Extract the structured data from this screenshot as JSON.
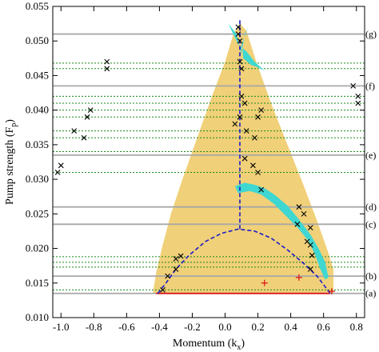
{
  "chart_data": {
    "type": "scatter",
    "xlabel": "Momentum (k",
    "xlabel_sub": "x",
    "xlabel_close": ")",
    "ylabel": "Pump strength (F",
    "ylabel_sub": "p",
    "ylabel_close": ")",
    "xlim": [
      -1.05,
      0.85
    ],
    "ylim": [
      0.01,
      0.055
    ],
    "xticks": [
      {
        "value": -1.0,
        "label": "-1.0"
      },
      {
        "value": -0.8,
        "label": "-0.8"
      },
      {
        "value": -0.6,
        "label": "-0.6"
      },
      {
        "value": -0.4,
        "label": "-0.4"
      },
      {
        "value": -0.2,
        "label": "-0.2"
      },
      {
        "value": 0.0,
        "label": "0.0"
      },
      {
        "value": 0.2,
        "label": "0.2"
      },
      {
        "value": 0.4,
        "label": "0.4"
      },
      {
        "value": 0.6,
        "label": "0.6"
      },
      {
        "value": 0.8,
        "label": "0.8"
      }
    ],
    "yticks": [
      {
        "value": 0.01,
        "label": "0.010"
      },
      {
        "value": 0.015,
        "label": "0.015"
      },
      {
        "value": 0.02,
        "label": "0.020"
      },
      {
        "value": 0.025,
        "label": "0.025"
      },
      {
        "value": 0.03,
        "label": "0.030"
      },
      {
        "value": 0.035,
        "label": "0.035"
      },
      {
        "value": 0.04,
        "label": "0.040"
      },
      {
        "value": 0.045,
        "label": "0.045"
      },
      {
        "value": 0.05,
        "label": "0.050"
      },
      {
        "value": 0.055,
        "label": "0.055"
      }
    ],
    "side_labels": [
      {
        "y": 0.0135,
        "label": "(a)"
      },
      {
        "y": 0.016,
        "label": "(b)"
      },
      {
        "y": 0.0235,
        "label": "(c)"
      },
      {
        "y": 0.026,
        "label": "(d)"
      },
      {
        "y": 0.0335,
        "label": "(e)"
      },
      {
        "y": 0.0435,
        "label": "(f)"
      },
      {
        "y": 0.051,
        "label": "(g)"
      }
    ],
    "gray_lines": [
      0.0135,
      0.016,
      0.0235,
      0.026,
      0.0335,
      0.0435,
      0.051
    ],
    "green_dotted_lines": [
      0.014,
      0.0173,
      0.018,
      0.0188,
      0.031,
      0.034,
      0.036,
      0.037,
      0.039,
      0.04,
      0.041,
      0.042,
      0.046,
      0.0468
    ],
    "yellow_region": {
      "color": "#f0d078",
      "outline": [
        [
          -0.44,
          0.0135
        ],
        [
          -0.42,
          0.0165
        ],
        [
          -0.38,
          0.0205
        ],
        [
          -0.33,
          0.025
        ],
        [
          -0.26,
          0.03
        ],
        [
          -0.17,
          0.036
        ],
        [
          -0.08,
          0.042
        ],
        [
          0.0,
          0.047
        ],
        [
          0.05,
          0.051
        ],
        [
          0.09,
          0.0525
        ],
        [
          0.13,
          0.0515
        ],
        [
          0.19,
          0.047
        ],
        [
          0.28,
          0.041
        ],
        [
          0.38,
          0.035
        ],
        [
          0.48,
          0.029
        ],
        [
          0.56,
          0.024
        ],
        [
          0.62,
          0.02
        ],
        [
          0.66,
          0.017
        ],
        [
          0.66,
          0.0135
        ]
      ]
    },
    "cyan_regions": [
      {
        "color": "#3fd7d1",
        "outline": [
          [
            0.02,
            0.0525
          ],
          [
            0.07,
            0.051
          ],
          [
            0.09,
            0.049
          ],
          [
            0.1,
            0.048
          ],
          [
            0.1,
            0.0495
          ],
          [
            0.14,
            0.052
          ],
          [
            0.12,
            0.051
          ],
          [
            0.105,
            0.049
          ],
          [
            0.11,
            0.0475
          ],
          [
            0.16,
            0.0465
          ],
          [
            0.2,
            0.0462
          ],
          [
            0.24,
            0.0457
          ],
          [
            0.18,
            0.047
          ],
          [
            0.13,
            0.0485
          ],
          [
            0.08,
            0.0495
          ],
          [
            0.05,
            0.051
          ]
        ]
      },
      {
        "color": "#3fd7d1",
        "outline": [
          [
            0.06,
            0.029
          ],
          [
            0.12,
            0.0295
          ],
          [
            0.18,
            0.0292
          ],
          [
            0.24,
            0.0287
          ],
          [
            0.3,
            0.0278
          ],
          [
            0.38,
            0.0262
          ],
          [
            0.45,
            0.0242
          ],
          [
            0.52,
            0.022
          ],
          [
            0.57,
            0.02
          ],
          [
            0.61,
            0.018
          ],
          [
            0.63,
            0.0158
          ],
          [
            0.61,
            0.0155
          ],
          [
            0.58,
            0.017
          ],
          [
            0.55,
            0.019
          ],
          [
            0.51,
            0.021
          ],
          [
            0.45,
            0.0228
          ],
          [
            0.38,
            0.0245
          ],
          [
            0.3,
            0.0264
          ],
          [
            0.22,
            0.0278
          ],
          [
            0.15,
            0.0283
          ],
          [
            0.08,
            0.028
          ]
        ]
      }
    ],
    "red_line": {
      "color": "#dd1111",
      "y": 0.0135,
      "x_from": -0.42,
      "x_to": 0.64
    },
    "red_plus_points": [
      {
        "x": 0.24,
        "y": 0.015
      },
      {
        "x": 0.45,
        "y": 0.0158
      },
      {
        "x": 0.65,
        "y": 0.0138
      }
    ],
    "blue_dashed_curve": {
      "color": "#1a1ac8",
      "points": [
        [
          -0.41,
          0.0135
        ],
        [
          -0.36,
          0.015
        ],
        [
          -0.3,
          0.017
        ],
        [
          -0.22,
          0.019
        ],
        [
          -0.12,
          0.021
        ],
        [
          -0.02,
          0.0222
        ],
        [
          0.08,
          0.0228
        ],
        [
          0.18,
          0.0225
        ],
        [
          0.28,
          0.0215
        ],
        [
          0.38,
          0.0198
        ],
        [
          0.48,
          0.0178
        ],
        [
          0.56,
          0.016
        ],
        [
          0.64,
          0.0135
        ]
      ]
    },
    "blue_dashed_vertical": {
      "color": "#1a1ac8",
      "x": 0.09,
      "y_from": 0.0228,
      "y_to": 0.053
    },
    "black_x_points": [
      {
        "x": -1.02,
        "y": 0.031
      },
      {
        "x": -1.0,
        "y": 0.032
      },
      {
        "x": -0.92,
        "y": 0.037
      },
      {
        "x": -0.86,
        "y": 0.036
      },
      {
        "x": -0.84,
        "y": 0.039
      },
      {
        "x": -0.82,
        "y": 0.04
      },
      {
        "x": -0.72,
        "y": 0.046
      },
      {
        "x": -0.72,
        "y": 0.047
      },
      {
        "x": -0.38,
        "y": 0.014
      },
      {
        "x": -0.35,
        "y": 0.016
      },
      {
        "x": -0.3,
        "y": 0.017
      },
      {
        "x": -0.3,
        "y": 0.0185
      },
      {
        "x": -0.27,
        "y": 0.0189
      },
      {
        "x": 0.08,
        "y": 0.052
      },
      {
        "x": 0.08,
        "y": 0.051
      },
      {
        "x": 0.09,
        "y": 0.05
      },
      {
        "x": 0.09,
        "y": 0.047
      },
      {
        "x": 0.1,
        "y": 0.046
      },
      {
        "x": 0.1,
        "y": 0.042
      },
      {
        "x": 0.12,
        "y": 0.041
      },
      {
        "x": 0.09,
        "y": 0.039
      },
      {
        "x": 0.06,
        "y": 0.038
      },
      {
        "x": 0.13,
        "y": 0.037
      },
      {
        "x": 0.18,
        "y": 0.036
      },
      {
        "x": 0.2,
        "y": 0.039
      },
      {
        "x": 0.22,
        "y": 0.04
      },
      {
        "x": 0.12,
        "y": 0.033
      },
      {
        "x": 0.17,
        "y": 0.032
      },
      {
        "x": 0.2,
        "y": 0.031
      },
      {
        "x": 0.22,
        "y": 0.0285
      },
      {
        "x": 0.45,
        "y": 0.026
      },
      {
        "x": 0.48,
        "y": 0.025
      },
      {
        "x": 0.44,
        "y": 0.0235
      },
      {
        "x": 0.52,
        "y": 0.023
      },
      {
        "x": 0.5,
        "y": 0.021
      },
      {
        "x": 0.52,
        "y": 0.0205
      },
      {
        "x": 0.53,
        "y": 0.019
      },
      {
        "x": 0.52,
        "y": 0.017
      },
      {
        "x": 0.78,
        "y": 0.0435
      },
      {
        "x": 0.81,
        "y": 0.042
      },
      {
        "x": 0.81,
        "y": 0.041
      }
    ]
  }
}
